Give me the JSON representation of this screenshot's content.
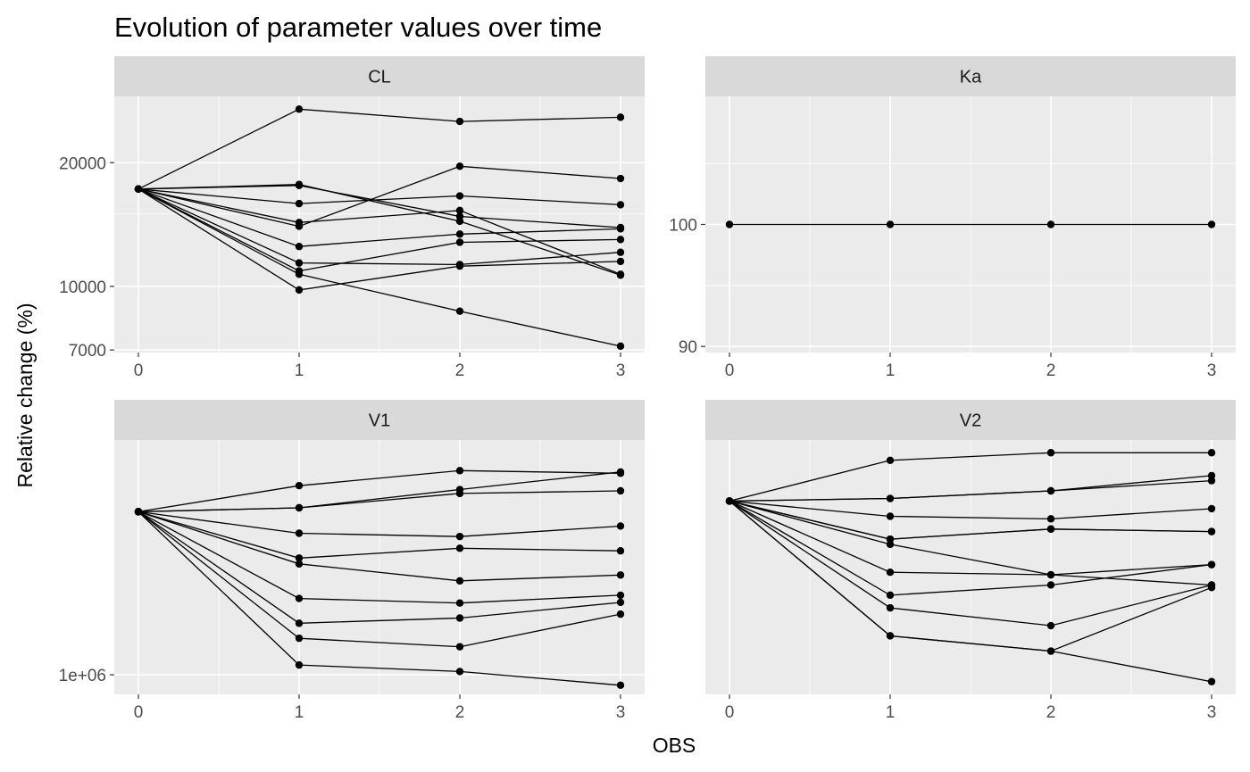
{
  "chart_data": {
    "type": "line",
    "title": "Evolution of parameter values over time",
    "xlabel": "OBS",
    "ylabel": "Relative change (%)",
    "x": [
      0,
      1,
      2,
      3
    ],
    "x_ticks": [
      "0",
      "1",
      "2",
      "3"
    ],
    "grid": true,
    "colors": {
      "panel_bg": "#EBEBEB",
      "strip_bg": "#D9D9D9",
      "grid": "#FFFFFF",
      "line": "#000000"
    },
    "facets": [
      {
        "name": "CL",
        "scale": "log",
        "ylim": [
          6900,
          29000
        ],
        "y_ticks": [
          {
            "value": 7000,
            "label": "7000"
          },
          {
            "value": 10000,
            "label": "10000"
          },
          {
            "value": 20000,
            "label": "20000"
          }
        ],
        "minor_ticks": [
          15000
        ],
        "series": [
          {
            "values": [
              17250,
              27000,
              25200,
              25800
            ]
          },
          {
            "values": [
              17250,
              17700,
              14400,
              10650
            ]
          },
          {
            "values": [
              17250,
              17600,
              14800,
              13900
            ]
          },
          {
            "values": [
              17250,
              15900,
              16600,
              15800
            ]
          },
          {
            "values": [
              17250,
              14300,
              15300,
              10700
            ]
          },
          {
            "values": [
              17250,
              14000,
              19600,
              18300
            ]
          },
          {
            "values": [
              17250,
              12500,
              13400,
              13800
            ]
          },
          {
            "values": [
              17250,
              11400,
              11300,
              12100
            ]
          },
          {
            "values": [
              17250,
              10900,
              12800,
              13000
            ]
          },
          {
            "values": [
              17250,
              9800,
              11200,
              11500
            ]
          },
          {
            "values": [
              17250,
              10700,
              8700,
              7150
            ]
          }
        ]
      },
      {
        "name": "Ka",
        "scale": "linear",
        "ylim": [
          89.5,
          110.5
        ],
        "y_ticks": [
          {
            "value": 90,
            "label": "90"
          },
          {
            "value": 100,
            "label": "100"
          }
        ],
        "minor_ticks": [
          95,
          105
        ],
        "series": [
          {
            "values": [
              100,
              100,
              100,
              100
            ]
          }
        ]
      },
      {
        "name": "V1",
        "scale": "linear",
        "ylim": [
          970000,
          1360000
        ],
        "y_ticks": [
          {
            "value": 1000000,
            "label": "1e+06"
          }
        ],
        "minor_ticks": [],
        "series": [
          {
            "values": [
              1250000,
              1290000,
              1313000,
              1309000
            ]
          },
          {
            "values": [
              1250000,
              1256000,
              1284000,
              1311000
            ]
          },
          {
            "values": [
              1250000,
              1256000,
              1278000,
              1282000
            ]
          },
          {
            "values": [
              1250000,
              1217000,
              1212000,
              1228000
            ]
          },
          {
            "values": [
              1250000,
              1179000,
              1194000,
              1190000
            ]
          },
          {
            "values": [
              1250000,
              1170000,
              1144000,
              1153000
            ]
          },
          {
            "values": [
              1250000,
              1117000,
              1110000,
              1122000
            ]
          },
          {
            "values": [
              1250000,
              1079000,
              1087000,
              1111000
            ]
          },
          {
            "values": [
              1250000,
              1056000,
              1043000,
              1093000
            ]
          },
          {
            "values": [
              1250000,
              1015000,
              1005000,
              984000
            ]
          }
        ]
      },
      {
        "name": "V2",
        "scale": "linear",
        "ylim": [
          0,
          100
        ],
        "y_ticks": [],
        "minor_ticks": [],
        "series": [
          {
            "values": [
              76,
              92,
              95,
              95
            ]
          },
          {
            "values": [
              76,
              77,
              80,
              86
            ]
          },
          {
            "values": [
              76,
              77,
              80,
              84
            ]
          },
          {
            "values": [
              76,
              70,
              69,
              73
            ]
          },
          {
            "values": [
              76,
              61,
              65,
              64
            ]
          },
          {
            "values": [
              76,
              59,
              47,
              51
            ]
          },
          {
            "values": [
              76,
              48,
              47,
              43
            ]
          },
          {
            "values": [
              76,
              39,
              43,
              51
            ]
          },
          {
            "values": [
              76,
              34,
              27,
              43
            ]
          },
          {
            "values": [
              76,
              23,
              17,
              42
            ]
          },
          {
            "values": [
              76,
              61,
              65,
              64
            ]
          },
          {
            "values": [
              76,
              23,
              17,
              5
            ]
          }
        ]
      }
    ]
  }
}
